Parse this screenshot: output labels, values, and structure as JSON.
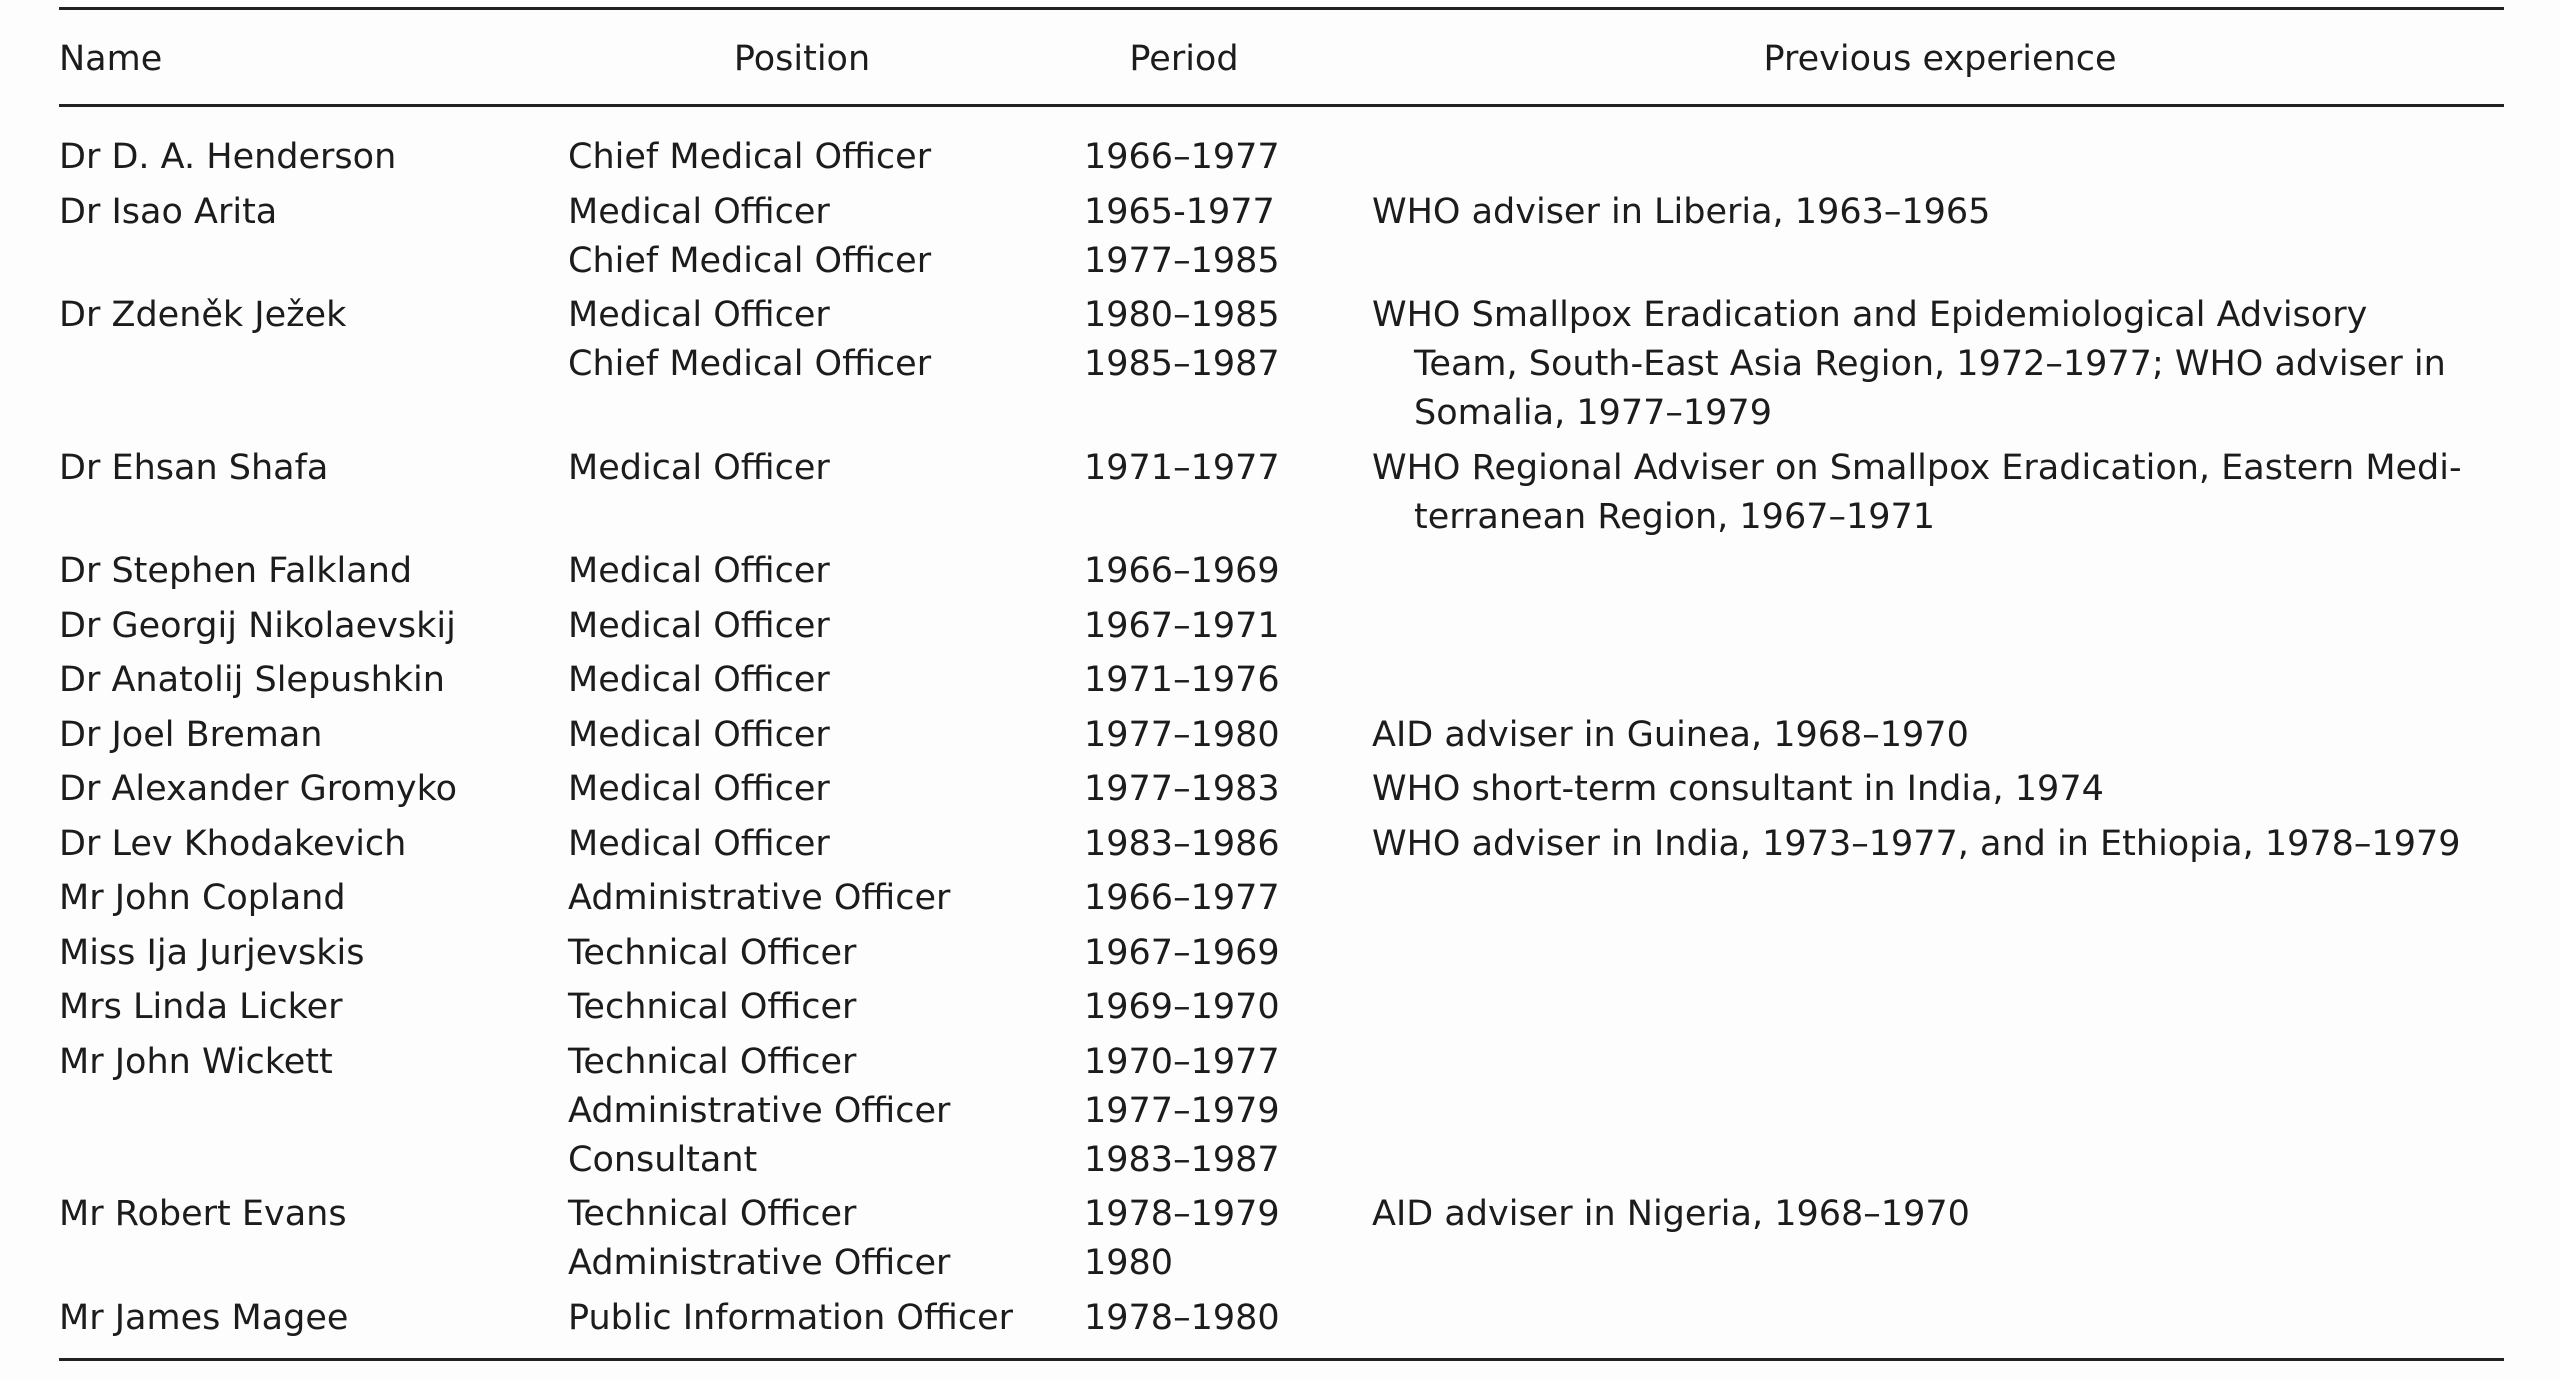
{
  "header": {
    "columns": [
      "Name",
      "Position",
      "Period",
      "Previous experience"
    ]
  },
  "rows": [
    {
      "name": "Dr D. A. Henderson",
      "positions": [
        "Chief Medical Officer"
      ],
      "periods": [
        "1966–1977"
      ],
      "experience": []
    },
    {
      "name": "Dr Isao Arita",
      "positions": [
        "Medical Officer",
        "Chief Medical Officer"
      ],
      "periods": [
        "1965-1977",
        "1977–1985"
      ],
      "experience": [
        "WHO adviser in Liberia, 1963–1965"
      ]
    },
    {
      "name": "Dr Zdeněk Ježek",
      "positions": [
        "Medical Officer",
        "Chief Medical Officer"
      ],
      "periods": [
        "1980–1985",
        "1985–1987"
      ],
      "experience": [
        "WHO Smallpox Eradication and Epidemiological Advisory",
        "Team, South-East Asia Region, 1972–1977; WHO adviser in",
        "Somalia, 1977–1979"
      ]
    },
    {
      "name": "Dr Ehsan Shafa",
      "positions": [
        "Medical Officer"
      ],
      "periods": [
        "1971–1977"
      ],
      "experience": [
        "WHO Regional Adviser on Smallpox Eradication, Eastern Medi-",
        "terranean Region, 1967–1971"
      ]
    },
    {
      "name": "Dr Stephen Falkland",
      "positions": [
        "Medical Officer"
      ],
      "periods": [
        "1966–1969"
      ],
      "experience": []
    },
    {
      "name": "Dr Georgij Nikolaevskij",
      "positions": [
        "Medical Officer"
      ],
      "periods": [
        "1967–1971"
      ],
      "experience": []
    },
    {
      "name": "Dr Anatolij Slepushkin",
      "positions": [
        "Medical Officer"
      ],
      "periods": [
        "1971–1976"
      ],
      "experience": []
    },
    {
      "name": "Dr Joel Breman",
      "positions": [
        "Medical Officer"
      ],
      "periods": [
        "1977–1980"
      ],
      "experience": [
        "AID adviser in Guinea, 1968–1970"
      ]
    },
    {
      "name": "Dr Alexander Gromyko",
      "positions": [
        "Medical Officer"
      ],
      "periods": [
        "1977–1983"
      ],
      "experience": [
        "WHO short-term consultant in India, 1974"
      ]
    },
    {
      "name": "Dr Lev Khodakevich",
      "positions": [
        "Medical Officer"
      ],
      "periods": [
        "1983–1986"
      ],
      "experience": [
        "WHO adviser in India, 1973–1977, and in Ethiopia, 1978–1979"
      ]
    },
    {
      "name": "Mr John Copland",
      "positions": [
        "Administrative Officer"
      ],
      "periods": [
        "1966–1977"
      ],
      "experience": []
    },
    {
      "name": "Miss Ija Jurjevskis",
      "positions": [
        "Technical Officer"
      ],
      "periods": [
        "1967–1969"
      ],
      "experience": []
    },
    {
      "name": "Mrs Linda Licker",
      "positions": [
        "Technical Officer"
      ],
      "periods": [
        "1969–1970"
      ],
      "experience": []
    },
    {
      "name": "Mr John Wickett",
      "positions": [
        "Technical Officer",
        "Administrative Officer",
        "Consultant"
      ],
      "periods": [
        "1970–1977",
        "1977–1979",
        "1983–1987"
      ],
      "experience": []
    },
    {
      "name": "Mr Robert Evans",
      "positions": [
        "Technical Officer",
        "Administrative Officer"
      ],
      "periods": [
        "1978–1979",
        "1980"
      ],
      "experience": [
        "AID adviser in Nigeria, 1968–1970"
      ]
    },
    {
      "name": "Mr James Magee",
      "positions": [
        "Public Information Officer"
      ],
      "periods": [
        "1978–1980"
      ],
      "experience": []
    }
  ]
}
